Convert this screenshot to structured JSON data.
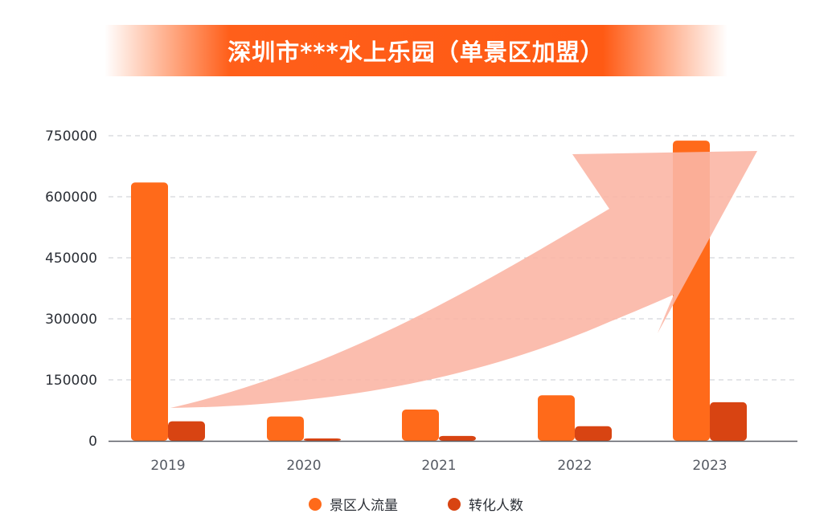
{
  "chart_data": {
    "type": "bar",
    "title": "深圳市***水上乐园（单景区加盟）",
    "categories": [
      "2019",
      "2020",
      "2021",
      "2022",
      "2023"
    ],
    "series": [
      {
        "name": "景区人流量",
        "color": "#ff6a1a",
        "values": [
          635000,
          60000,
          77000,
          112000,
          738000
        ]
      },
      {
        "name": "转化人数",
        "color": "#d84412",
        "values": [
          48000,
          6000,
          12000,
          36000,
          95000
        ]
      }
    ],
    "yticks": [
      0,
      150000,
      300000,
      450000,
      600000,
      750000
    ],
    "ylim": [
      0,
      750000
    ],
    "grid": true,
    "legend_position": "bottom-center",
    "annotation": "upward-trend-arrow"
  }
}
